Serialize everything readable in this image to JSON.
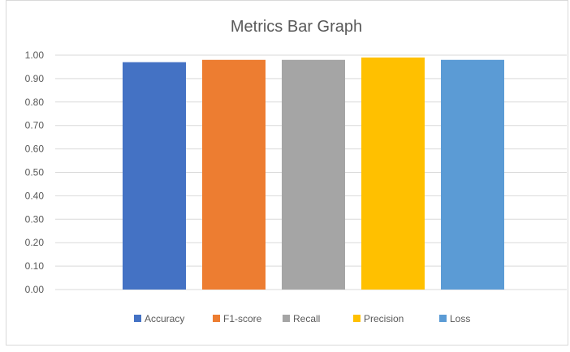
{
  "chart_data": {
    "type": "bar",
    "title": "Metrics Bar Graph",
    "xlabel": "",
    "ylabel": "",
    "ylim": [
      0,
      1.0
    ],
    "yticks": [
      "0.00",
      "0.10",
      "0.20",
      "0.30",
      "0.40",
      "0.50",
      "0.60",
      "0.70",
      "0.80",
      "0.90",
      "1.00"
    ],
    "grid": true,
    "legend_position": "bottom",
    "series": [
      {
        "name": "Accuracy",
        "value": 0.97,
        "color": "#4472c4"
      },
      {
        "name": "F1-score",
        "value": 0.98,
        "color": "#ed7d31"
      },
      {
        "name": "Recall",
        "value": 0.98,
        "color": "#a5a5a5"
      },
      {
        "name": "Precision",
        "value": 0.99,
        "color": "#ffc000"
      },
      {
        "name": "Loss",
        "value": 0.98,
        "color": "#5b9bd5"
      }
    ]
  }
}
